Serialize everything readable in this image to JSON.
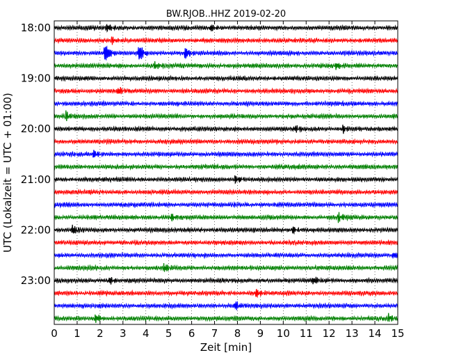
{
  "chart_data": {
    "type": "line",
    "title": "BW.RJOB..HHZ 2019-02-20",
    "xlabel": "Zeit  [min]",
    "ylabel": "UTC (Lokalzeit = UTC + 01:00)",
    "xlim": [
      0,
      15
    ],
    "xticks": [
      "0",
      "1",
      "2",
      "3",
      "4",
      "5",
      "6",
      "7",
      "8",
      "9",
      "10",
      "11",
      "12",
      "13",
      "14",
      "15"
    ],
    "yticks": [
      "18:00",
      "19:00",
      "20:00",
      "21:00",
      "22:00",
      "23:00"
    ],
    "rows_per_hour": 4,
    "row_count": 24,
    "row_colors": [
      "#000000",
      "#ff0000",
      "#0000ff",
      "#008000"
    ],
    "grid": "vertical dotted lines at each minute",
    "events": [
      {
        "row": 0,
        "minute": 2.3,
        "amplitude": 1.6
      },
      {
        "row": 0,
        "minute": 6.8,
        "amplitude": 1.3
      },
      {
        "row": 1,
        "minute": 2.5,
        "amplitude": 1.3
      },
      {
        "row": 2,
        "minute": 2.2,
        "amplitude": 5.0
      },
      {
        "row": 2,
        "minute": 3.7,
        "amplitude": 3.4
      },
      {
        "row": 2,
        "minute": 5.7,
        "amplitude": 2.6
      },
      {
        "row": 3,
        "minute": 4.4,
        "amplitude": 1.5
      },
      {
        "row": 3,
        "minute": 12.3,
        "amplitude": 1.4
      },
      {
        "row": 5,
        "minute": 2.8,
        "amplitude": 1.6
      },
      {
        "row": 7,
        "minute": 0.5,
        "amplitude": 1.7
      },
      {
        "row": 8,
        "minute": 10.5,
        "amplitude": 1.4
      },
      {
        "row": 8,
        "minute": 12.6,
        "amplitude": 1.4
      },
      {
        "row": 10,
        "minute": 1.7,
        "amplitude": 1.5
      },
      {
        "row": 12,
        "minute": 7.9,
        "amplitude": 1.5
      },
      {
        "row": 15,
        "minute": 5.1,
        "amplitude": 1.6
      },
      {
        "row": 15,
        "minute": 12.4,
        "amplitude": 1.7
      },
      {
        "row": 16,
        "minute": 0.8,
        "amplitude": 1.8
      },
      {
        "row": 16,
        "minute": 10.4,
        "amplitude": 1.5
      },
      {
        "row": 18,
        "minute": 14.8,
        "amplitude": 1.5
      },
      {
        "row": 19,
        "minute": 4.8,
        "amplitude": 1.7
      },
      {
        "row": 20,
        "minute": 2.4,
        "amplitude": 1.6
      },
      {
        "row": 20,
        "minute": 11.3,
        "amplitude": 1.6
      },
      {
        "row": 21,
        "minute": 8.8,
        "amplitude": 1.7
      },
      {
        "row": 22,
        "minute": 7.9,
        "amplitude": 1.9
      },
      {
        "row": 23,
        "minute": 1.8,
        "amplitude": 1.7
      },
      {
        "row": 23,
        "minute": 14.6,
        "amplitude": 1.6
      }
    ]
  }
}
